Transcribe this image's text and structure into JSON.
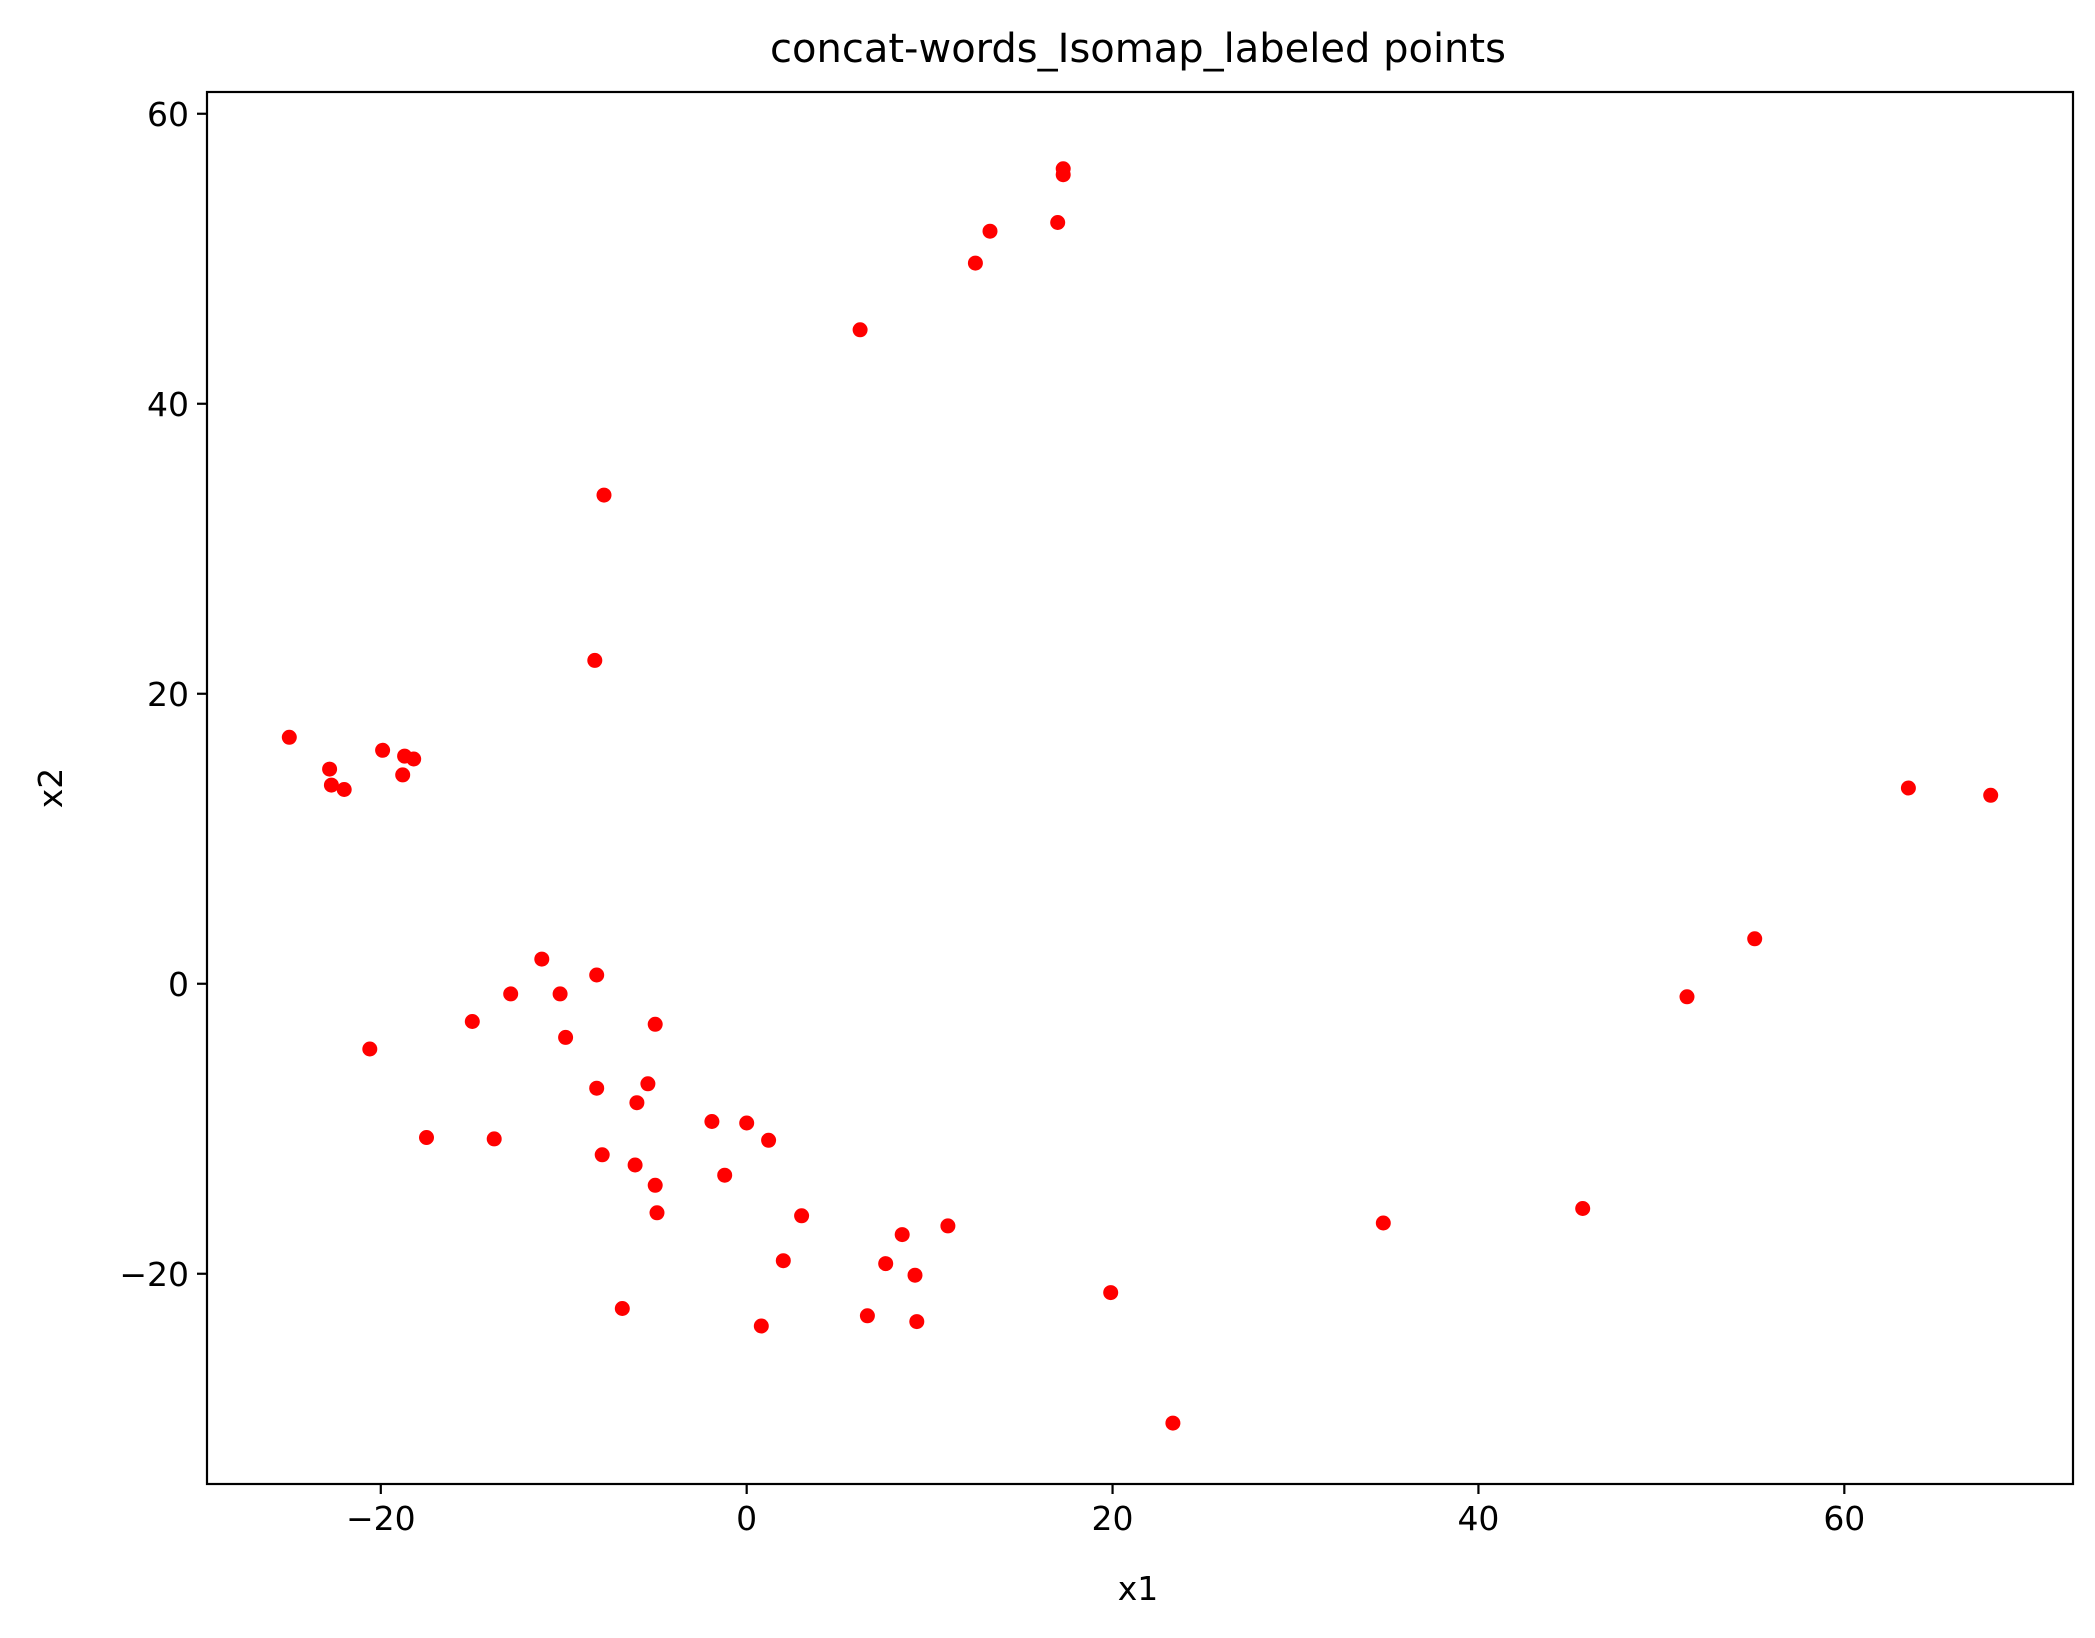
{
  "chart_data": {
    "type": "scatter",
    "title": "concat-words_Isomap_labeled points",
    "xlabel": "x1",
    "ylabel": "x2",
    "xlim": [
      -29.5,
      72.5
    ],
    "ylim": [
      -34.5,
      61.5
    ],
    "xticks": [
      -20,
      0,
      20,
      40,
      60
    ],
    "yticks": [
      -20,
      0,
      20,
      40,
      60
    ],
    "xtick_labels": [
      "−20",
      "0",
      "20",
      "40",
      "60"
    ],
    "ytick_labels": [
      "−20",
      "0",
      "20",
      "40",
      "60"
    ],
    "grid": false,
    "marker_color": "#ff0000",
    "points": [
      {
        "x": 17.3,
        "y": 56.2
      },
      {
        "x": 17.3,
        "y": 55.8
      },
      {
        "x": 17.0,
        "y": 52.5
      },
      {
        "x": 13.3,
        "y": 51.9
      },
      {
        "x": 12.5,
        "y": 49.7
      },
      {
        "x": 6.2,
        "y": 45.1
      },
      {
        "x": -7.8,
        "y": 33.7
      },
      {
        "x": -8.3,
        "y": 22.3
      },
      {
        "x": -25.0,
        "y": 17.0
      },
      {
        "x": -19.9,
        "y": 16.1
      },
      {
        "x": -18.7,
        "y": 15.7
      },
      {
        "x": -18.2,
        "y": 15.5
      },
      {
        "x": -22.8,
        "y": 14.8
      },
      {
        "x": -18.8,
        "y": 14.4
      },
      {
        "x": -22.7,
        "y": 13.7
      },
      {
        "x": -22.0,
        "y": 13.4
      },
      {
        "x": 63.5,
        "y": 13.5
      },
      {
        "x": 68.0,
        "y": 13.0
      },
      {
        "x": 55.1,
        "y": 3.1
      },
      {
        "x": 51.4,
        "y": -0.9
      },
      {
        "x": -11.2,
        "y": 1.7
      },
      {
        "x": -8.2,
        "y": 0.6
      },
      {
        "x": -12.9,
        "y": -0.7
      },
      {
        "x": -10.2,
        "y": -0.7
      },
      {
        "x": -15.0,
        "y": -2.6
      },
      {
        "x": -5.0,
        "y": -2.8
      },
      {
        "x": -9.9,
        "y": -3.7
      },
      {
        "x": -20.6,
        "y": -4.5
      },
      {
        "x": -8.2,
        "y": -7.2
      },
      {
        "x": -5.4,
        "y": -6.9
      },
      {
        "x": -6.0,
        "y": -8.2
      },
      {
        "x": -1.9,
        "y": -9.5
      },
      {
        "x": 0.0,
        "y": -9.6
      },
      {
        "x": 1.2,
        "y": -10.8
      },
      {
        "x": -17.5,
        "y": -10.6
      },
      {
        "x": -13.8,
        "y": -10.7
      },
      {
        "x": -7.9,
        "y": -11.8
      },
      {
        "x": -6.1,
        "y": -12.5
      },
      {
        "x": -1.2,
        "y": -13.2
      },
      {
        "x": -5.0,
        "y": -13.9
      },
      {
        "x": -4.9,
        "y": -15.8
      },
      {
        "x": 3.0,
        "y": -16.0
      },
      {
        "x": 11.0,
        "y": -16.7
      },
      {
        "x": 8.5,
        "y": -17.3
      },
      {
        "x": 2.0,
        "y": -19.1
      },
      {
        "x": 7.6,
        "y": -19.3
      },
      {
        "x": 9.2,
        "y": -20.1
      },
      {
        "x": 34.8,
        "y": -16.5
      },
      {
        "x": 45.7,
        "y": -15.5
      },
      {
        "x": 19.9,
        "y": -21.3
      },
      {
        "x": -6.8,
        "y": -22.4
      },
      {
        "x": 6.6,
        "y": -22.9
      },
      {
        "x": 9.3,
        "y": -23.3
      },
      {
        "x": 0.8,
        "y": -23.6
      },
      {
        "x": 23.3,
        "y": -30.3
      }
    ]
  }
}
